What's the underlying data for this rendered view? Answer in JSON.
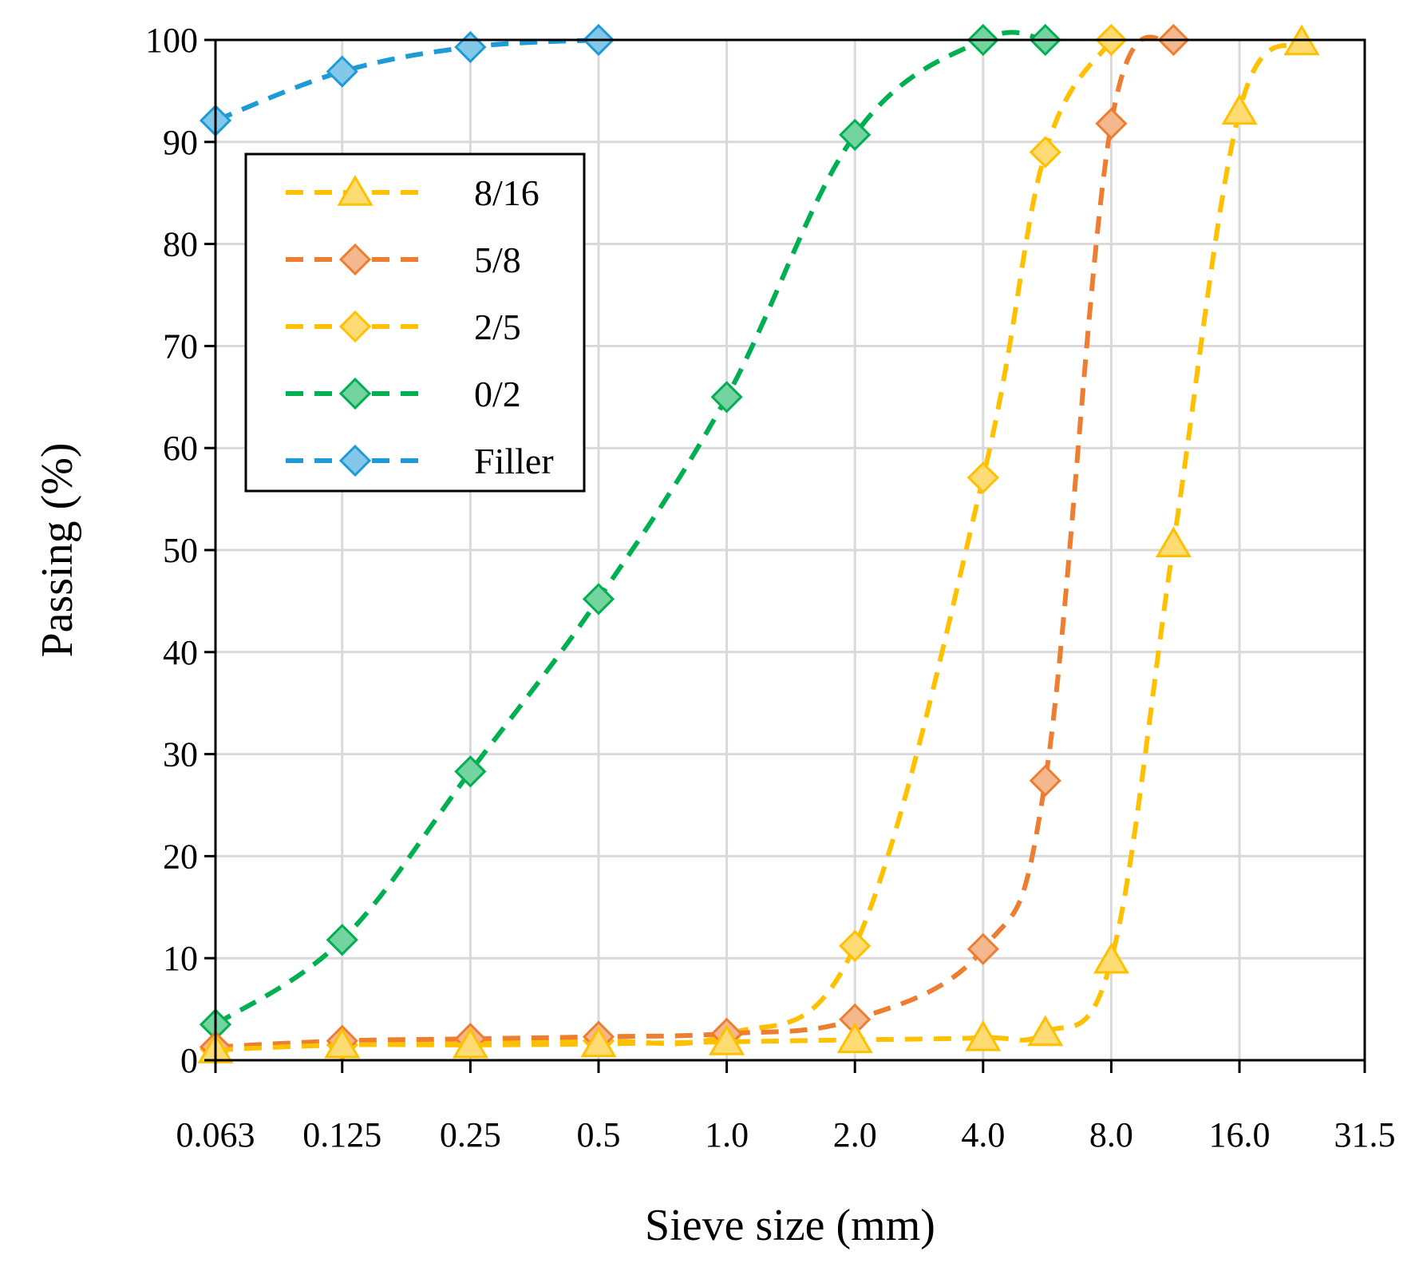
{
  "chart_data": {
    "type": "line",
    "title": "",
    "xlabel": "Sieve size (mm)",
    "ylabel": "Passing (%)",
    "x_scale": "log2",
    "x_ticks": [
      "0.063",
      "0.125",
      "0.25",
      "0.5",
      "1.0",
      "2.0",
      "4.0",
      "8.0",
      "16.0",
      "31.5"
    ],
    "ylim": [
      0,
      100
    ],
    "y_ticks": [
      "0",
      "10",
      "20",
      "30",
      "40",
      "50",
      "60",
      "70",
      "80",
      "90",
      "100"
    ],
    "grid": true,
    "legend_position": "top-left",
    "series": [
      {
        "name": "8/16",
        "color": "#FFC000",
        "marker": "triangle",
        "x": [
          0.063,
          0.125,
          0.25,
          0.5,
          1.0,
          2.0,
          4.0,
          5.6,
          8.0,
          11.2,
          16.0,
          22.4
        ],
        "values": [
          1,
          1.5,
          1.5,
          1.6,
          1.8,
          2,
          2.2,
          2.7,
          9.8,
          50.6,
          93,
          99.8
        ]
      },
      {
        "name": "5/8",
        "color": "#ED7D31",
        "marker": "diamond",
        "x": [
          0.063,
          0.125,
          0.25,
          0.5,
          1.0,
          2.0,
          4.0,
          5.6,
          8.0,
          11.2
        ],
        "values": [
          1.3,
          1.9,
          2.1,
          2.3,
          2.6,
          4,
          10.9,
          27.4,
          91.8,
          100
        ]
      },
      {
        "name": "2/5",
        "color": "#FFC000",
        "marker": "diamond",
        "x": [
          0.063,
          0.125,
          0.25,
          0.5,
          1.0,
          2.0,
          4.0,
          5.6,
          8.0
        ],
        "values": [
          1.1,
          1.5,
          1.7,
          1.9,
          2.5,
          11.2,
          57.1,
          89,
          100
        ]
      },
      {
        "name": "0/2",
        "color": "#00B050",
        "marker": "diamond",
        "x": [
          0.063,
          0.125,
          0.25,
          0.5,
          1.0,
          2.0,
          4.0,
          5.6
        ],
        "values": [
          3.5,
          11.8,
          28.3,
          45.2,
          65,
          90.7,
          100,
          100
        ]
      },
      {
        "name": "Filler",
        "color": "#1E9BD7",
        "marker": "diamond",
        "x": [
          0.063,
          0.125,
          0.25,
          0.5
        ],
        "values": [
          92.1,
          96.9,
          99.3,
          100
        ]
      }
    ]
  }
}
